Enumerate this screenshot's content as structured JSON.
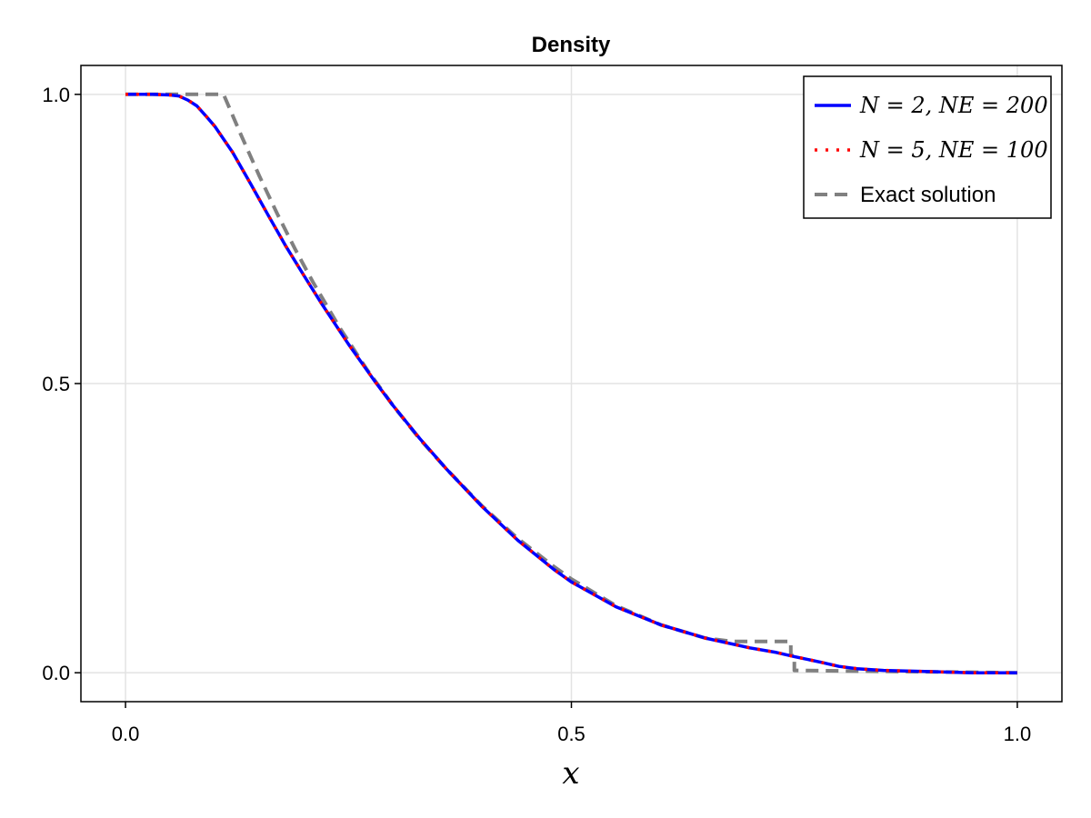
{
  "chart_data": {
    "type": "line",
    "title": "Density",
    "xlabel": "x",
    "ylabel": "",
    "xlim": [
      -0.05,
      1.05
    ],
    "ylim": [
      -0.05,
      1.05
    ],
    "xticks": [
      0.0,
      0.5,
      1.0
    ],
    "xtick_labels": [
      "0.0",
      "0.5",
      "1.0"
    ],
    "yticks": [
      0.0,
      0.5,
      1.0
    ],
    "ytick_labels": [
      "0.0",
      "0.5",
      "1.0"
    ],
    "grid": true,
    "legend_position": "top-right",
    "series": [
      {
        "name": "N = 2, NE = 200",
        "color": "#0000ff",
        "style": "solid",
        "x": [
          0.0,
          0.03,
          0.05,
          0.06,
          0.07,
          0.08,
          0.09,
          0.1,
          0.12,
          0.14,
          0.16,
          0.18,
          0.2,
          0.22,
          0.25,
          0.28,
          0.3,
          0.33,
          0.36,
          0.4,
          0.44,
          0.48,
          0.5,
          0.55,
          0.6,
          0.65,
          0.7,
          0.73,
          0.75,
          0.78,
          0.8,
          0.82,
          0.85,
          0.9,
          0.95,
          1.0
        ],
        "y": [
          1.0,
          1.0,
          0.999,
          0.997,
          0.99,
          0.98,
          0.963,
          0.945,
          0.9,
          0.846,
          0.791,
          0.737,
          0.687,
          0.638,
          0.568,
          0.503,
          0.462,
          0.405,
          0.352,
          0.287,
          0.229,
          0.179,
          0.157,
          0.114,
          0.083,
          0.06,
          0.043,
          0.035,
          0.028,
          0.018,
          0.011,
          0.007,
          0.004,
          0.002,
          0.0,
          0.0
        ]
      },
      {
        "name": "N = 5, NE = 100",
        "color": "#ff0000",
        "style": "dotted",
        "x": [
          0.0,
          0.03,
          0.05,
          0.06,
          0.07,
          0.08,
          0.09,
          0.1,
          0.12,
          0.14,
          0.16,
          0.18,
          0.2,
          0.22,
          0.25,
          0.28,
          0.3,
          0.33,
          0.36,
          0.4,
          0.44,
          0.48,
          0.5,
          0.55,
          0.6,
          0.65,
          0.7,
          0.73,
          0.75,
          0.78,
          0.8,
          0.82,
          0.85,
          0.9,
          0.95,
          1.0
        ],
        "y": [
          1.0,
          1.0,
          0.999,
          0.997,
          0.99,
          0.98,
          0.963,
          0.945,
          0.9,
          0.846,
          0.791,
          0.737,
          0.687,
          0.638,
          0.568,
          0.503,
          0.462,
          0.405,
          0.352,
          0.287,
          0.229,
          0.179,
          0.157,
          0.114,
          0.083,
          0.06,
          0.043,
          0.035,
          0.028,
          0.018,
          0.011,
          0.007,
          0.004,
          0.002,
          0.0,
          0.0
        ]
      },
      {
        "name": "Exact solution",
        "color": "#808080",
        "style": "dashed",
        "x": [
          0.0,
          0.11,
          0.13,
          0.15,
          0.17,
          0.19,
          0.21,
          0.24,
          0.27,
          0.3,
          0.33,
          0.36,
          0.4,
          0.44,
          0.48,
          0.5,
          0.55,
          0.6,
          0.65,
          0.68,
          0.746,
          0.746,
          0.75,
          0.75,
          1.0
        ],
        "y": [
          1.0,
          1.0,
          0.928,
          0.859,
          0.794,
          0.733,
          0.676,
          0.597,
          0.526,
          0.462,
          0.404,
          0.352,
          0.288,
          0.232,
          0.184,
          0.162,
          0.116,
          0.083,
          0.06,
          0.054,
          0.054,
          0.03,
          0.03,
          0.004,
          0.0
        ]
      }
    ]
  }
}
